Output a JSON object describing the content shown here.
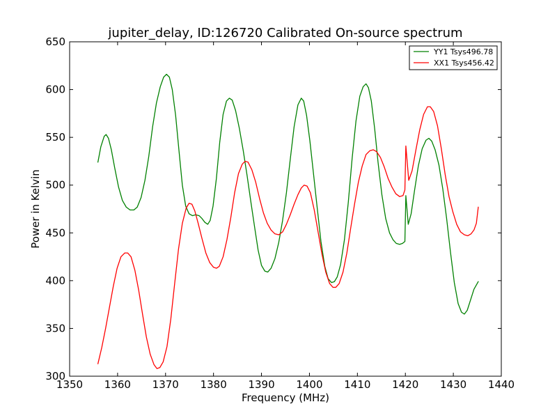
{
  "chart_data": {
    "type": "line",
    "title": "jupiter_delay, ID:126720 Calibrated On-source spectrum",
    "xlabel": "Frequency (MHz)",
    "ylabel": "Power in Kelvin",
    "xlim": [
      1350,
      1440
    ],
    "ylim": [
      300,
      650
    ],
    "xticks": [
      1350,
      1360,
      1370,
      1380,
      1390,
      1400,
      1410,
      1420,
      1430,
      1440
    ],
    "yticks": [
      300,
      350,
      400,
      450,
      500,
      550,
      600,
      650
    ],
    "grid": false,
    "legend_position": "top-right",
    "series": [
      {
        "name": "YY1 Tsys496.78",
        "color": "#008000",
        "points": [
          [
            1355.9,
            524
          ],
          [
            1356.5,
            540
          ],
          [
            1357.2,
            551
          ],
          [
            1357.6,
            553
          ],
          [
            1358.1,
            549
          ],
          [
            1358.7,
            537
          ],
          [
            1359.4,
            518
          ],
          [
            1360.2,
            498
          ],
          [
            1361.0,
            484
          ],
          [
            1361.8,
            477
          ],
          [
            1362.6,
            474
          ],
          [
            1363.4,
            474
          ],
          [
            1364.1,
            477
          ],
          [
            1364.9,
            487
          ],
          [
            1365.7,
            505
          ],
          [
            1366.5,
            530
          ],
          [
            1367.3,
            561
          ],
          [
            1368.1,
            586
          ],
          [
            1368.9,
            603
          ],
          [
            1369.6,
            613
          ],
          [
            1370.2,
            616
          ],
          [
            1370.8,
            613
          ],
          [
            1371.4,
            600
          ],
          [
            1372.1,
            573
          ],
          [
            1372.8,
            536
          ],
          [
            1373.5,
            500
          ],
          [
            1374.2,
            478
          ],
          [
            1374.9,
            470
          ],
          [
            1375.6,
            468
          ],
          [
            1376.3,
            469
          ],
          [
            1377.0,
            468
          ],
          [
            1377.6,
            465
          ],
          [
            1378.2,
            461
          ],
          [
            1378.8,
            459
          ],
          [
            1379.3,
            463
          ],
          [
            1379.9,
            478
          ],
          [
            1380.6,
            507
          ],
          [
            1381.3,
            545
          ],
          [
            1382.0,
            574
          ],
          [
            1382.7,
            588
          ],
          [
            1383.3,
            591
          ],
          [
            1383.9,
            589
          ],
          [
            1384.6,
            578
          ],
          [
            1385.4,
            559
          ],
          [
            1386.2,
            536
          ],
          [
            1387.0,
            510
          ],
          [
            1387.8,
            482
          ],
          [
            1388.6,
            455
          ],
          [
            1389.3,
            432
          ],
          [
            1390.0,
            416
          ],
          [
            1390.7,
            410
          ],
          [
            1391.3,
            409
          ],
          [
            1392.0,
            413
          ],
          [
            1392.8,
            423
          ],
          [
            1393.6,
            440
          ],
          [
            1394.4,
            463
          ],
          [
            1395.2,
            492
          ],
          [
            1396.0,
            527
          ],
          [
            1396.8,
            561
          ],
          [
            1397.6,
            584
          ],
          [
            1398.3,
            591
          ],
          [
            1398.8,
            588
          ],
          [
            1399.4,
            573
          ],
          [
            1400.1,
            546
          ],
          [
            1400.8,
            514
          ],
          [
            1401.6,
            477
          ],
          [
            1402.4,
            441
          ],
          [
            1403.2,
            415
          ],
          [
            1403.9,
            402
          ],
          [
            1404.6,
            398
          ],
          [
            1405.2,
            399
          ],
          [
            1405.8,
            404
          ],
          [
            1406.5,
            417
          ],
          [
            1407.3,
            443
          ],
          [
            1408.1,
            482
          ],
          [
            1408.9,
            528
          ],
          [
            1409.7,
            567
          ],
          [
            1410.5,
            593
          ],
          [
            1411.2,
            603
          ],
          [
            1411.8,
            606
          ],
          [
            1412.3,
            602
          ],
          [
            1412.9,
            588
          ],
          [
            1413.6,
            559
          ],
          [
            1414.3,
            524
          ],
          [
            1415.1,
            490
          ],
          [
            1415.9,
            465
          ],
          [
            1416.7,
            450
          ],
          [
            1417.4,
            443
          ],
          [
            1418.1,
            439
          ],
          [
            1418.8,
            438
          ],
          [
            1419.4,
            439
          ],
          [
            1419.9,
            441
          ],
          [
            1420.1,
            489
          ],
          [
            1420.6,
            459
          ],
          [
            1421.2,
            470
          ],
          [
            1421.9,
            494
          ],
          [
            1422.7,
            520
          ],
          [
            1423.5,
            538
          ],
          [
            1424.3,
            547
          ],
          [
            1424.9,
            549
          ],
          [
            1425.5,
            546
          ],
          [
            1426.2,
            537
          ],
          [
            1427.0,
            521
          ],
          [
            1427.8,
            496
          ],
          [
            1428.6,
            465
          ],
          [
            1429.4,
            430
          ],
          [
            1430.2,
            398
          ],
          [
            1431.0,
            376
          ],
          [
            1431.7,
            367
          ],
          [
            1432.3,
            365
          ],
          [
            1432.9,
            369
          ],
          [
            1433.6,
            380
          ],
          [
            1434.3,
            391
          ],
          [
            1435.2,
            399
          ]
        ]
      },
      {
        "name": "XX1 Tsys456.42",
        "color": "#ff0000",
        "points": [
          [
            1355.9,
            313
          ],
          [
            1356.7,
            330
          ],
          [
            1357.5,
            350
          ],
          [
            1358.3,
            372
          ],
          [
            1359.1,
            394
          ],
          [
            1359.9,
            413
          ],
          [
            1360.7,
            425
          ],
          [
            1361.5,
            429
          ],
          [
            1362.1,
            429
          ],
          [
            1362.8,
            425
          ],
          [
            1363.6,
            411
          ],
          [
            1364.4,
            390
          ],
          [
            1365.2,
            365
          ],
          [
            1366.0,
            341
          ],
          [
            1366.8,
            323
          ],
          [
            1367.6,
            312
          ],
          [
            1368.2,
            308
          ],
          [
            1368.8,
            309
          ],
          [
            1369.5,
            315
          ],
          [
            1370.3,
            331
          ],
          [
            1371.1,
            360
          ],
          [
            1371.9,
            397
          ],
          [
            1372.7,
            433
          ],
          [
            1373.5,
            460
          ],
          [
            1374.3,
            476
          ],
          [
            1374.9,
            481
          ],
          [
            1375.5,
            480
          ],
          [
            1376.1,
            473
          ],
          [
            1376.8,
            460
          ],
          [
            1377.6,
            444
          ],
          [
            1378.4,
            429
          ],
          [
            1379.2,
            419
          ],
          [
            1380.0,
            414
          ],
          [
            1380.6,
            413
          ],
          [
            1381.2,
            415
          ],
          [
            1382.0,
            425
          ],
          [
            1382.8,
            443
          ],
          [
            1383.6,
            466
          ],
          [
            1384.4,
            492
          ],
          [
            1385.2,
            512
          ],
          [
            1386.0,
            522
          ],
          [
            1386.6,
            525
          ],
          [
            1387.2,
            524
          ],
          [
            1388.0,
            516
          ],
          [
            1388.8,
            503
          ],
          [
            1389.6,
            486
          ],
          [
            1390.4,
            471
          ],
          [
            1391.2,
            460
          ],
          [
            1392.0,
            453
          ],
          [
            1392.8,
            449
          ],
          [
            1393.6,
            448
          ],
          [
            1394.4,
            451
          ],
          [
            1395.2,
            459
          ],
          [
            1396.0,
            469
          ],
          [
            1396.8,
            480
          ],
          [
            1397.6,
            490
          ],
          [
            1398.3,
            497
          ],
          [
            1398.9,
            500
          ],
          [
            1399.5,
            499
          ],
          [
            1400.2,
            492
          ],
          [
            1401.0,
            474
          ],
          [
            1401.8,
            451
          ],
          [
            1402.6,
            428
          ],
          [
            1403.4,
            409
          ],
          [
            1404.2,
            397
          ],
          [
            1404.9,
            393
          ],
          [
            1405.5,
            393
          ],
          [
            1406.2,
            397
          ],
          [
            1407.0,
            409
          ],
          [
            1407.8,
            429
          ],
          [
            1408.6,
            455
          ],
          [
            1409.4,
            480
          ],
          [
            1410.2,
            503
          ],
          [
            1411.0,
            520
          ],
          [
            1411.8,
            532
          ],
          [
            1412.6,
            536
          ],
          [
            1413.3,
            537
          ],
          [
            1414.0,
            535
          ],
          [
            1414.8,
            529
          ],
          [
            1415.6,
            519
          ],
          [
            1416.4,
            507
          ],
          [
            1417.2,
            498
          ],
          [
            1418.0,
            491
          ],
          [
            1418.8,
            488
          ],
          [
            1419.5,
            489
          ],
          [
            1419.9,
            495
          ],
          [
            1420.1,
            541
          ],
          [
            1420.7,
            505
          ],
          [
            1421.4,
            515
          ],
          [
            1422.2,
            537
          ],
          [
            1423.0,
            558
          ],
          [
            1423.8,
            574
          ],
          [
            1424.6,
            582
          ],
          [
            1425.2,
            582
          ],
          [
            1425.9,
            577
          ],
          [
            1426.7,
            562
          ],
          [
            1427.5,
            538
          ],
          [
            1428.3,
            511
          ],
          [
            1429.1,
            488
          ],
          [
            1429.9,
            472
          ],
          [
            1430.7,
            459
          ],
          [
            1431.5,
            451
          ],
          [
            1432.3,
            448
          ],
          [
            1433.0,
            447
          ],
          [
            1433.7,
            449
          ],
          [
            1434.3,
            453
          ],
          [
            1434.8,
            460
          ],
          [
            1435.2,
            477
          ]
        ]
      }
    ]
  }
}
